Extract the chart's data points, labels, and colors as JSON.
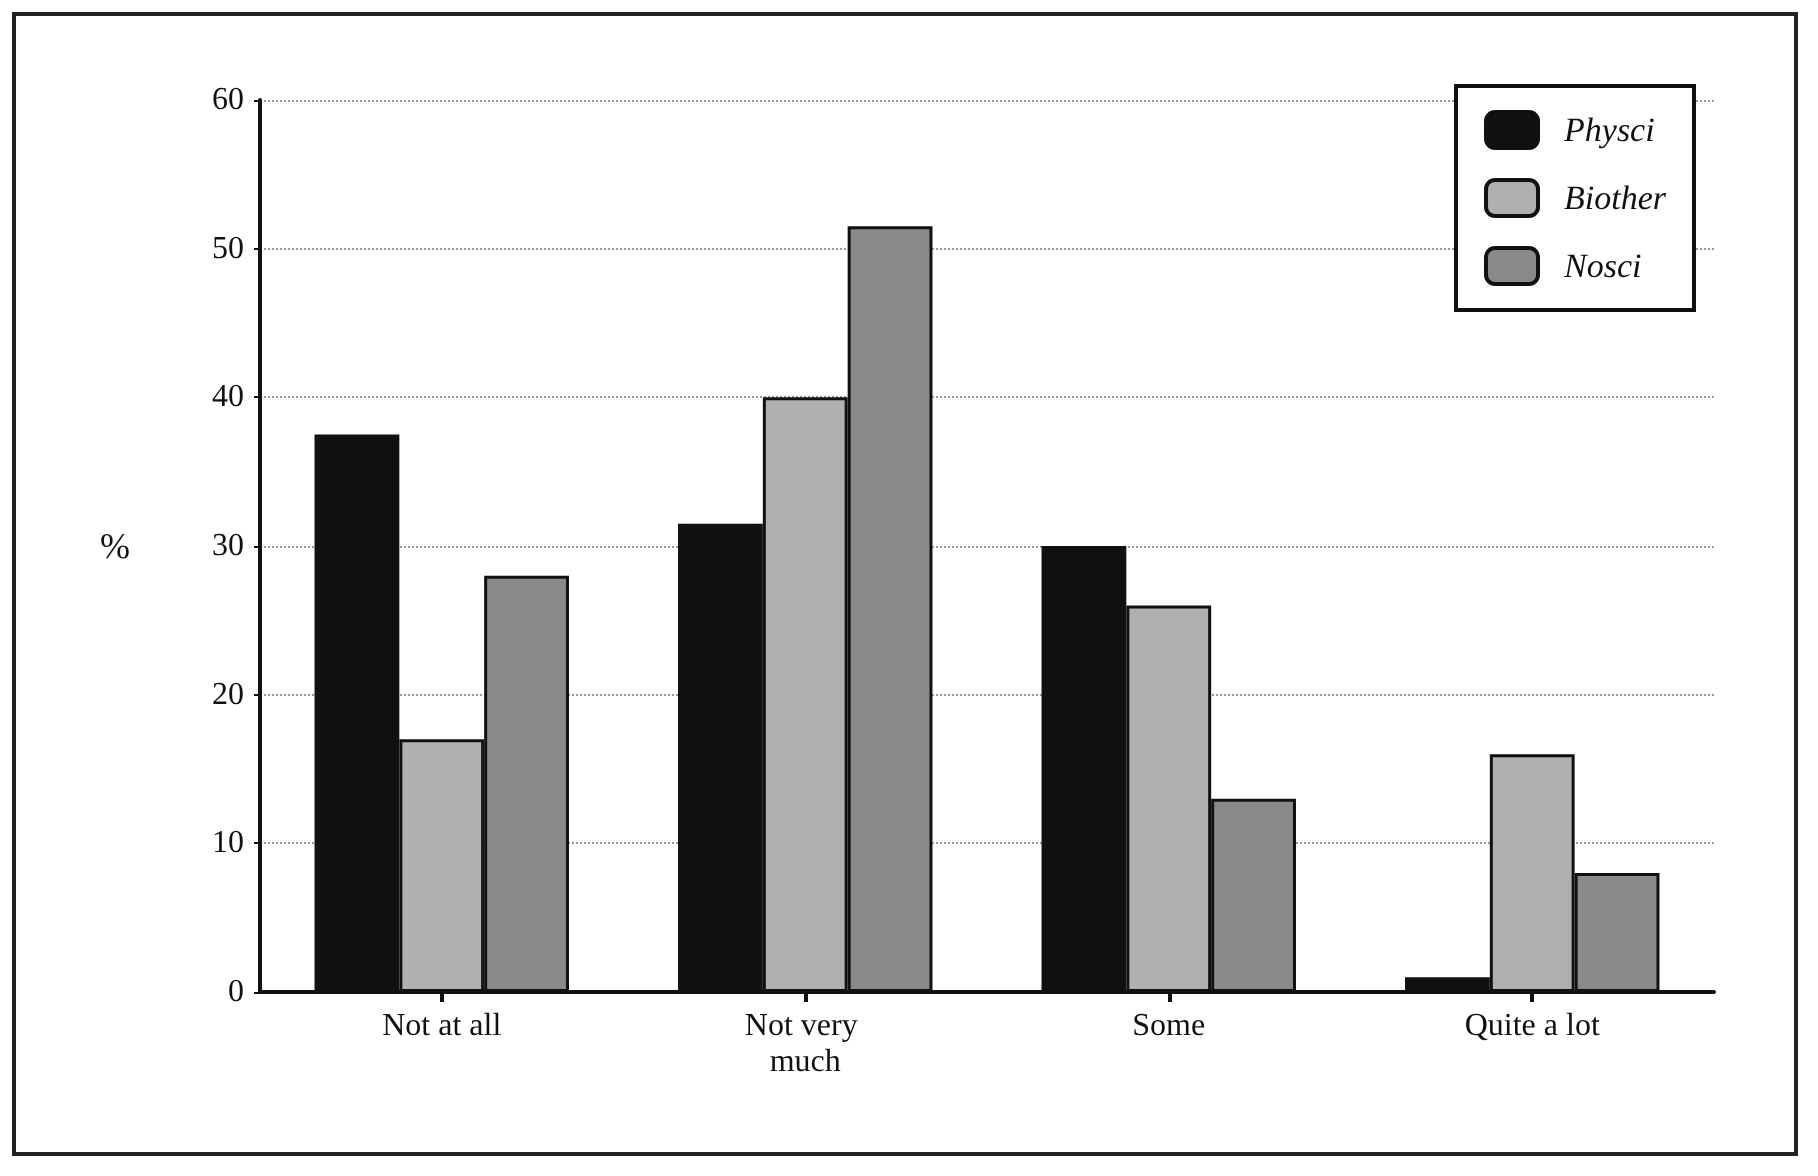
{
  "chart_data": {
    "type": "bar",
    "ylabel": "%",
    "categories": [
      "Not at all",
      "Not very much",
      "Some",
      "Quite a lot"
    ],
    "series": [
      {
        "name": "Physci",
        "color": "#111111",
        "values": [
          37.5,
          31.5,
          30,
          1
        ]
      },
      {
        "name": "Biother",
        "color": "#b0b0b0",
        "values": [
          17,
          40,
          26,
          16
        ]
      },
      {
        "name": "Nosci",
        "color": "#8a8a8a",
        "values": [
          28,
          51.5,
          13,
          8
        ]
      }
    ],
    "ylim": [
      0,
      60
    ],
    "yticks": [
      0,
      10,
      20,
      30,
      40,
      50,
      60
    ],
    "grid": "y",
    "legend": "top right"
  }
}
